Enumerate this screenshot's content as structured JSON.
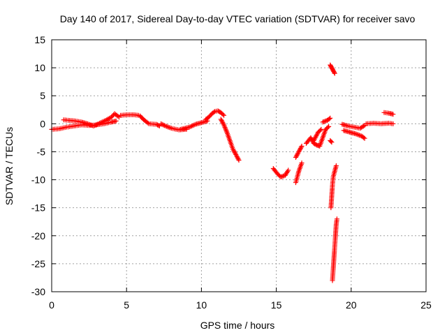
{
  "chart_data": {
    "type": "scatter",
    "title": "Day 140 of 2017, Sidereal Day-to-day VTEC variation (SDTVAR) for receiver savo",
    "xlabel": "GPS time / hours",
    "ylabel": "SDTVAR / TECUs",
    "xlim": [
      0,
      25
    ],
    "ylim": [
      -30,
      15
    ],
    "xticks": [
      0,
      5,
      10,
      15,
      20,
      25
    ],
    "yticks": [
      -30,
      -25,
      -20,
      -15,
      -10,
      -5,
      0,
      5,
      10,
      15
    ],
    "grid": true,
    "marker": "+",
    "color": "#ff0000",
    "series": [
      {
        "name": "SDTVAR",
        "segments": [
          [
            [
              0.0,
              -1.0
            ],
            [
              0.5,
              -0.9
            ],
            [
              1.0,
              -0.6
            ],
            [
              1.5,
              -0.4
            ],
            [
              2.0,
              -0.2
            ],
            [
              2.5,
              -0.3
            ],
            [
              3.0,
              -0.2
            ],
            [
              3.5,
              0.0
            ],
            [
              4.0,
              0.3
            ],
            [
              4.3,
              0.5
            ]
          ],
          [
            [
              0.8,
              0.7
            ],
            [
              1.2,
              0.6
            ],
            [
              1.6,
              0.5
            ],
            [
              2.0,
              0.3
            ],
            [
              2.4,
              0.0
            ],
            [
              2.8,
              -0.4
            ],
            [
              3.2,
              0.1
            ],
            [
              3.6,
              0.6
            ],
            [
              4.0,
              1.2
            ],
            [
              4.2,
              1.8
            ],
            [
              4.5,
              1.2
            ]
          ],
          [
            [
              4.6,
              1.5
            ],
            [
              5.0,
              1.6
            ],
            [
              5.5,
              1.6
            ],
            [
              5.8,
              1.5
            ]
          ],
          [
            [
              5.9,
              1.4
            ],
            [
              6.2,
              0.6
            ],
            [
              6.5,
              0.0
            ],
            [
              7.0,
              -0.1
            ],
            [
              7.2,
              -0.4
            ]
          ],
          [
            [
              7.3,
              0.0
            ],
            [
              7.6,
              -0.4
            ],
            [
              8.0,
              -0.8
            ],
            [
              8.5,
              -1.1
            ],
            [
              9.0,
              -1.0
            ]
          ],
          [
            [
              8.6,
              -1.0
            ],
            [
              9.2,
              -0.6
            ],
            [
              9.6,
              -0.1
            ],
            [
              10.0,
              0.2
            ],
            [
              10.4,
              0.5
            ]
          ],
          [
            [
              10.3,
              0.8
            ],
            [
              10.5,
              1.2
            ],
            [
              10.7,
              1.8
            ],
            [
              10.9,
              2.2
            ],
            [
              11.1,
              2.3
            ],
            [
              11.3,
              2.0
            ],
            [
              11.5,
              1.5
            ]
          ],
          [
            [
              11.3,
              0.8
            ],
            [
              11.5,
              -0.2
            ],
            [
              11.7,
              -1.5
            ],
            [
              11.9,
              -3.0
            ],
            [
              12.1,
              -4.5
            ],
            [
              12.3,
              -5.5
            ],
            [
              12.5,
              -6.5
            ]
          ],
          [
            [
              14.8,
              -8.0
            ],
            [
              15.1,
              -9.0
            ],
            [
              15.3,
              -9.5
            ],
            [
              15.6,
              -9.2
            ],
            [
              15.8,
              -8.3
            ]
          ],
          [
            [
              16.3,
              -10.5
            ],
            [
              16.5,
              -8.5
            ],
            [
              16.7,
              -7.0
            ]
          ],
          [
            [
              16.3,
              -6.0
            ],
            [
              16.5,
              -5.0
            ],
            [
              16.7,
              -4.0
            ]
          ],
          [
            [
              17.0,
              -3.5
            ],
            [
              17.3,
              -2.5
            ],
            [
              17.5,
              -3.5
            ],
            [
              17.7,
              -3.8
            ],
            [
              17.9,
              -4.0
            ],
            [
              18.1,
              -2.5
            ],
            [
              18.3,
              -1.0
            ],
            [
              18.5,
              -0.5
            ]
          ],
          [
            [
              17.5,
              -3.0
            ],
            [
              17.8,
              -1.5
            ],
            [
              18.0,
              -1.0
            ]
          ],
          [
            [
              18.1,
              0.3
            ],
            [
              18.4,
              0.6
            ],
            [
              18.6,
              1.0
            ]
          ],
          [
            [
              18.6,
              -3.0
            ],
            [
              18.7,
              -3.3
            ]
          ],
          [
            [
              18.6,
              10.5
            ],
            [
              18.7,
              10.0
            ],
            [
              18.8,
              9.5
            ],
            [
              18.9,
              9.0
            ]
          ],
          [
            [
              18.65,
              -15.0
            ],
            [
              18.7,
              -13.0
            ],
            [
              18.75,
              -11.0
            ],
            [
              18.8,
              -9.5
            ],
            [
              18.9,
              -8.5
            ],
            [
              19.0,
              -7.5
            ]
          ],
          [
            [
              18.75,
              -28.0
            ],
            [
              18.8,
              -26.0
            ],
            [
              18.85,
              -24.0
            ],
            [
              18.9,
              -22.0
            ],
            [
              18.95,
              -20.0
            ],
            [
              19.0,
              -18.0
            ],
            [
              19.05,
              -17.0
            ]
          ],
          [
            [
              19.4,
              -0.1
            ],
            [
              19.8,
              -0.4
            ],
            [
              20.2,
              -0.6
            ],
            [
              20.6,
              -0.8
            ],
            [
              20.9,
              -0.3
            ]
          ],
          [
            [
              19.5,
              -1.2
            ],
            [
              19.9,
              -1.5
            ],
            [
              20.3,
              -1.8
            ],
            [
              20.7,
              -2.2
            ],
            [
              20.9,
              -2.6
            ]
          ],
          [
            [
              21.0,
              0.0
            ],
            [
              21.5,
              0.1
            ],
            [
              22.0,
              0.0
            ],
            [
              22.5,
              0.1
            ],
            [
              22.8,
              0.0
            ]
          ],
          [
            [
              22.2,
              2.0
            ],
            [
              22.5,
              1.9
            ],
            [
              22.8,
              1.7
            ]
          ]
        ]
      }
    ]
  }
}
